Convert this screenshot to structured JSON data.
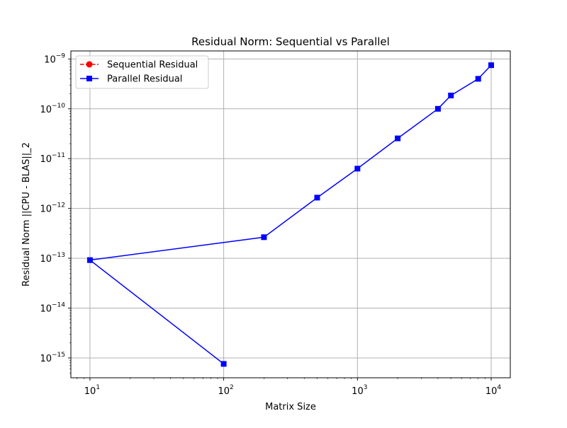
{
  "chart_data": {
    "type": "line",
    "title": "Residual Norm: Sequential vs Parallel",
    "xlabel": "Matrix Size",
    "ylabel": "Residual Norm ||CPU - BLAS||_2",
    "x_scale": "log",
    "y_scale": "log",
    "xlim": [
      7.2,
      13900
    ],
    "ylim": [
      4e-16,
      1.45e-09
    ],
    "grid": true,
    "legend_position": "upper-left",
    "x_ticks": [
      {
        "value": 10,
        "base": "10",
        "exp": "1"
      },
      {
        "value": 100,
        "base": "10",
        "exp": "2"
      },
      {
        "value": 1000,
        "base": "10",
        "exp": "3"
      },
      {
        "value": 10000,
        "base": "10",
        "exp": "4"
      }
    ],
    "y_ticks": [
      {
        "value": 1e-15,
        "base": "10",
        "exp": "−15"
      },
      {
        "value": 1e-14,
        "base": "10",
        "exp": "−14"
      },
      {
        "value": 1e-13,
        "base": "10",
        "exp": "−13"
      },
      {
        "value": 1e-12,
        "base": "10",
        "exp": "−12"
      },
      {
        "value": 1e-11,
        "base": "10",
        "exp": "−11"
      },
      {
        "value": 1e-10,
        "base": "10",
        "exp": "−10"
      },
      {
        "value": 1e-09,
        "base": "10",
        "exp": "−9"
      }
    ],
    "series": [
      {
        "name": "Sequential Residual",
        "color": "#ff0000",
        "marker": "circle",
        "linestyle": "dashed",
        "x": [],
        "y": []
      },
      {
        "name": "Parallel Residual",
        "color": "#0000ff",
        "marker": "square",
        "linestyle": "solid",
        "x": [
          100,
          10,
          200,
          500,
          1000,
          2000,
          4000,
          5000,
          8000,
          10000
        ],
        "y": [
          7.6e-16,
          9.2e-14,
          2.65e-13,
          1.65e-12,
          6.3e-12,
          2.55e-11,
          1e-10,
          1.85e-10,
          4e-10,
          7.5e-10
        ]
      }
    ]
  }
}
